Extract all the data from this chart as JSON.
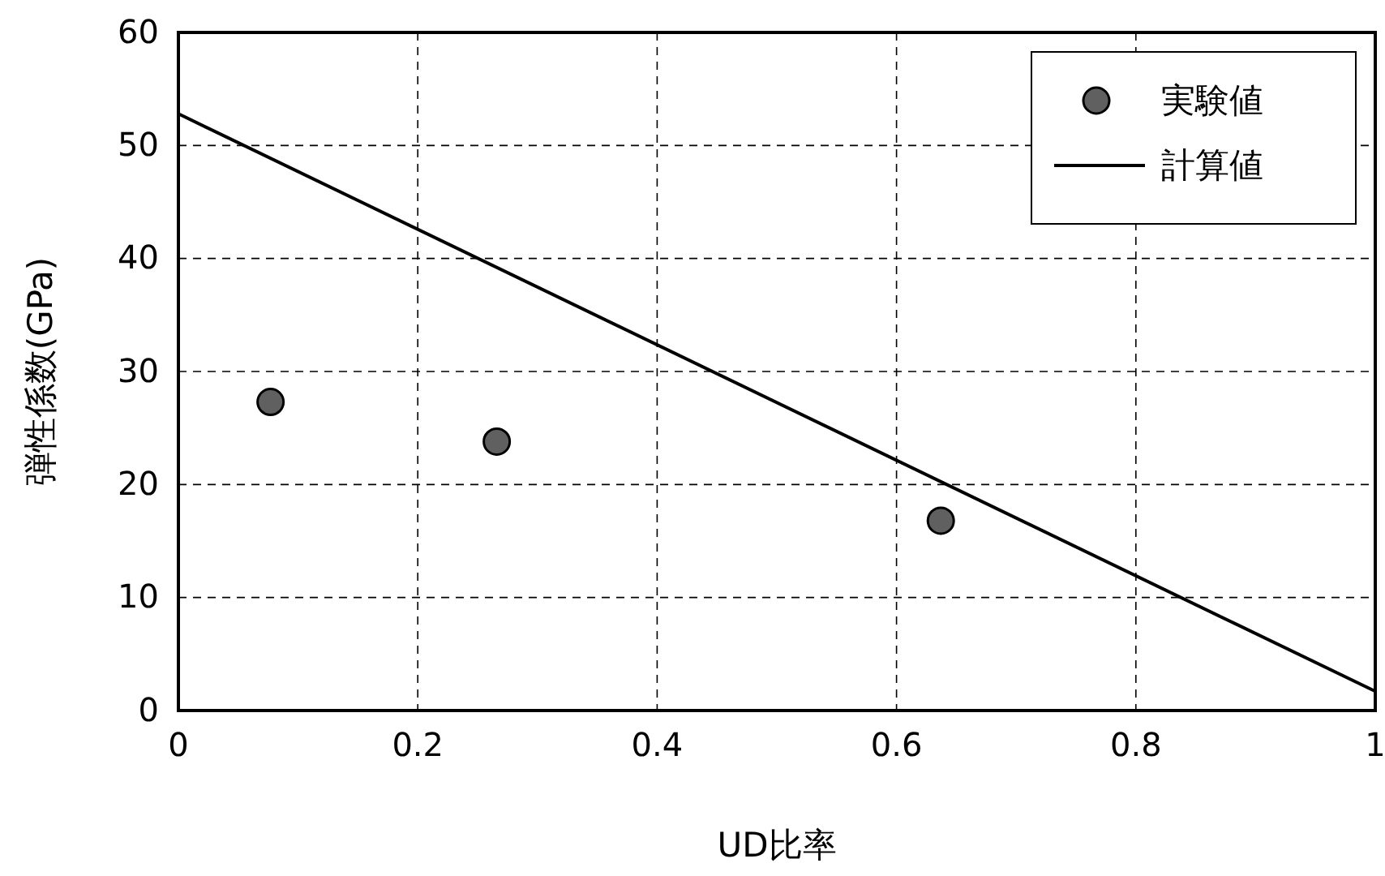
{
  "chart_data": {
    "type": "scatter",
    "xlabel": "UD比率",
    "ylabel": "弾性係数(GPa)",
    "xlim": [
      0,
      1
    ],
    "ylim": [
      0,
      60
    ],
    "xticks": [
      0,
      0.2,
      0.4,
      0.6,
      0.8,
      1
    ],
    "yticks": [
      0,
      10,
      20,
      30,
      40,
      50,
      60
    ],
    "grid": true,
    "legend": "top right",
    "series": [
      {
        "name": "実験値",
        "color": "#606060",
        "marker": "circle",
        "x": [
          0.077,
          0.266,
          0.637
        ],
        "values": [
          27.3,
          23.8,
          16.8
        ]
      },
      {
        "name": "計算値",
        "type": "line",
        "color": "#000000",
        "line_style": "solid",
        "x": [
          0,
          1
        ],
        "values": [
          52.8,
          1.7
        ]
      }
    ]
  }
}
